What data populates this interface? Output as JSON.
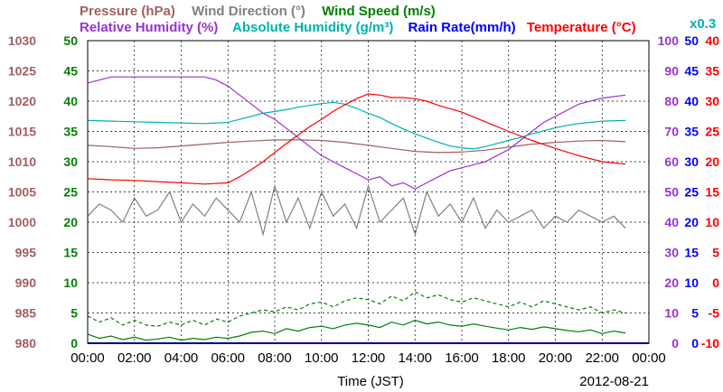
{
  "chart_data": {
    "type": "line",
    "date": "2012-08-21",
    "xlabel": "Time (JST)",
    "x_ticks": [
      "00:00",
      "02:00",
      "04:00",
      "06:00",
      "08:00",
      "10:00",
      "12:00",
      "14:00",
      "16:00",
      "18:00",
      "20:00",
      "22:00",
      "00:00"
    ],
    "xlim_hours": [
      0,
      24
    ],
    "grid": true,
    "legend": {
      "row1": [
        {
          "key": "pressure",
          "text": "Pressure (hPa)",
          "color": "#a06060"
        },
        {
          "key": "wind_direction",
          "text": "Wind Direction (°)",
          "color": "#808080"
        },
        {
          "key": "wind_speed",
          "text": "Wind Speed (m/s)",
          "color": "#008000"
        }
      ],
      "row2": [
        {
          "key": "relative_humidity",
          "text": "Relative Humidity (%)",
          "color": "#9933cc"
        },
        {
          "key": "absolute_humidity",
          "text": "Absolute Humidity (g/m³)",
          "color": "#00b0b0"
        },
        {
          "key": "rain_rate",
          "text": "Rain Rate(mm/h)",
          "color": "#0000ff"
        },
        {
          "key": "temperature",
          "text": "Temperature (°C)",
          "color": "#ff0000"
        }
      ],
      "wind_direction_scale_note": "x0.3"
    },
    "axes": {
      "pressure": {
        "color": "#a06060",
        "ylim": [
          980,
          1030
        ],
        "ticks": [
          "1030",
          "1025",
          "1020",
          "1015",
          "1010",
          "1005",
          "1000",
          "995",
          "990",
          "985",
          "980"
        ]
      },
      "wind_speed": {
        "color": "#008000",
        "ylim": [
          0,
          50
        ],
        "ticks": [
          "50",
          "45",
          "40",
          "35",
          "30",
          "25",
          "20",
          "15",
          "10",
          "5",
          "0"
        ]
      },
      "relative_humidity": {
        "color": "#9933cc",
        "ylim": [
          0,
          100
        ],
        "ticks": [
          "100",
          "90",
          "80",
          "70",
          "60",
          "50",
          "40",
          "30",
          "20",
          "10",
          "0"
        ]
      },
      "rain_rate": {
        "color": "#0000ff",
        "ylim": [
          0,
          50
        ],
        "ticks": [
          "50",
          "45",
          "40",
          "35",
          "30",
          "25",
          "20",
          "15",
          "10",
          "5",
          "0"
        ]
      },
      "temperature": {
        "color": "#ff0000",
        "ylim": [
          -10,
          40
        ],
        "ticks": [
          "40",
          "35",
          "30",
          "25",
          "20",
          "15",
          "10",
          "5",
          "0",
          "-5",
          "-10"
        ]
      }
    },
    "series": [
      {
        "key": "pressure",
        "name": "Pressure (hPa)",
        "color": "#a06060",
        "axis": "pressure",
        "x": [
          0,
          1,
          2,
          3,
          4,
          5,
          6,
          7,
          8,
          9,
          10,
          11,
          12,
          13,
          14,
          15,
          16,
          17,
          18,
          19,
          20,
          21,
          22,
          23
        ],
        "y": [
          1012.7,
          1012.5,
          1012.2,
          1012.3,
          1012.6,
          1012.9,
          1013.2,
          1013.4,
          1013.6,
          1013.6,
          1013.5,
          1013.2,
          1012.7,
          1012.2,
          1011.7,
          1011.5,
          1011.6,
          1011.9,
          1012.4,
          1012.9,
          1013.2,
          1013.4,
          1013.5,
          1013.3
        ]
      },
      {
        "key": "relative_humidity",
        "name": "Relative Humidity (%)",
        "color": "#9933cc",
        "axis": "relative_humidity",
        "x": [
          0,
          1,
          2,
          3,
          4,
          5,
          5.5,
          6,
          6.5,
          7,
          7.5,
          8,
          8.5,
          9,
          9.5,
          10,
          10.5,
          11,
          11.5,
          12,
          12.5,
          13,
          13.5,
          14,
          14.5,
          15,
          15.5,
          16,
          16.5,
          17,
          17.5,
          18,
          18.5,
          19,
          19.5,
          20,
          20.5,
          21,
          21.5,
          22,
          23
        ],
        "y": [
          86,
          88,
          88,
          88,
          88,
          88,
          87,
          85,
          82,
          79,
          76,
          74,
          71,
          68,
          65,
          62,
          60,
          58,
          56,
          54,
          55,
          52,
          53,
          51,
          53,
          55,
          57,
          58,
          59,
          60,
          62,
          64,
          67,
          70,
          73,
          75,
          77,
          79,
          80,
          81,
          82
        ]
      },
      {
        "key": "absolute_humidity",
        "name": "Absolute Humidity (g/m³)",
        "color": "#00b0b0",
        "axis": "wind_speed",
        "x": [
          0,
          1,
          2,
          3,
          4,
          5,
          6,
          6.5,
          7,
          7.5,
          8,
          8.5,
          9,
          9.5,
          10,
          10.5,
          11,
          11.5,
          12,
          12.5,
          13,
          13.5,
          14,
          14.5,
          15,
          15.5,
          16,
          16.5,
          17,
          17.5,
          18,
          18.5,
          19,
          19.5,
          20,
          20.5,
          21,
          21.5,
          22,
          23
        ],
        "y": [
          36.8,
          36.7,
          36.6,
          36.5,
          36.4,
          36.3,
          36.5,
          37,
          37.5,
          38,
          38.3,
          38.6,
          39,
          39.3,
          39.6,
          39.8,
          39.5,
          38.8,
          38,
          37.3,
          36.3,
          35.4,
          34.6,
          33.9,
          33.2,
          32.6,
          32.3,
          32.1,
          32.5,
          33,
          33.5,
          34,
          34.6,
          35.1,
          35.6,
          36,
          36.3,
          36.5,
          36.7,
          36.8
        ]
      },
      {
        "key": "temperature",
        "name": "Temperature (°C)",
        "color": "#ff0000",
        "axis": "temperature",
        "x": [
          0,
          1,
          2,
          3,
          4,
          5,
          6,
          6.5,
          7,
          7.5,
          8,
          8.5,
          9,
          9.5,
          10,
          10.5,
          11,
          11.5,
          12,
          12.5,
          13,
          13.5,
          14,
          14.5,
          15,
          16,
          17,
          18,
          19,
          20,
          21,
          22,
          23
        ],
        "y": [
          17.2,
          17.0,
          16.9,
          16.7,
          16.5,
          16.3,
          16.5,
          17.5,
          18.7,
          20,
          21.5,
          23,
          24.4,
          25.8,
          27,
          28.3,
          29.4,
          30.4,
          31.2,
          31,
          30.6,
          30.6,
          30.4,
          30,
          29.3,
          28.2,
          26.6,
          25,
          23.5,
          22.2,
          21,
          20,
          19.6
        ]
      },
      {
        "key": "wind_direction",
        "name": "Wind Direction (°)",
        "color": "#808080",
        "axis": "wind_speed",
        "note": "values x0.3",
        "x": [
          0,
          0.5,
          1,
          1.5,
          2,
          2.5,
          3,
          3.5,
          4,
          4.5,
          5,
          5.5,
          6,
          6.5,
          7,
          7.5,
          8,
          8.5,
          9,
          9.5,
          10,
          10.5,
          11,
          11.5,
          12,
          12.5,
          13,
          13.5,
          14,
          14.5,
          15,
          15.5,
          16,
          16.5,
          17,
          17.5,
          18,
          18.5,
          19,
          19.5,
          20,
          20.5,
          21,
          21.5,
          22,
          22.5,
          23
        ],
        "y": [
          21,
          23,
          22,
          20,
          24,
          21,
          22,
          25,
          20,
          23,
          21,
          24,
          22,
          20,
          25,
          18,
          26,
          20,
          24,
          19,
          25,
          21,
          23,
          19,
          26,
          20,
          22,
          24,
          18,
          25,
          21,
          23,
          20,
          24,
          19,
          22,
          20,
          21,
          22,
          19,
          21,
          20,
          22,
          21,
          20,
          21,
          19
        ]
      },
      {
        "key": "wind_speed_max",
        "name": "Wind Speed (m/s)",
        "color": "#008000",
        "axis": "wind_speed",
        "style": "dashed",
        "x": [
          0,
          0.5,
          1,
          1.5,
          2,
          2.5,
          3,
          3.5,
          4,
          4.5,
          5,
          5.5,
          6,
          6.5,
          7,
          7.5,
          8,
          8.5,
          9,
          9.5,
          10,
          10.5,
          11,
          11.5,
          12,
          12.5,
          13,
          13.5,
          14,
          14.5,
          15,
          15.5,
          16,
          16.5,
          17,
          17.5,
          18,
          18.5,
          19,
          19.5,
          20,
          20.5,
          21,
          21.5,
          22,
          22.5,
          23
        ],
        "y": [
          4.5,
          3.5,
          4.2,
          3,
          3.8,
          3,
          2.8,
          3.5,
          3,
          3.8,
          3,
          4,
          3.5,
          4.5,
          5,
          5.5,
          5.2,
          6,
          5.5,
          6.5,
          6.8,
          6,
          7,
          7.5,
          7.2,
          6.5,
          7.8,
          7,
          8.5,
          7.5,
          8,
          7.2,
          6.8,
          7.5,
          7,
          6.5,
          6,
          6.8,
          6,
          7,
          6.5,
          6,
          5.5,
          6,
          5,
          5.5,
          5
        ]
      },
      {
        "key": "wind_speed_avg",
        "name": "Wind Speed (m/s)",
        "color": "#008000",
        "axis": "wind_speed",
        "style": "solid",
        "x": [
          0,
          0.5,
          1,
          1.5,
          2,
          2.5,
          3,
          3.5,
          4,
          4.5,
          5,
          5.5,
          6,
          6.5,
          7,
          7.5,
          8,
          8.5,
          9,
          9.5,
          10,
          10.5,
          11,
          11.5,
          12,
          12.5,
          13,
          13.5,
          14,
          14.5,
          15,
          15.5,
          16,
          16.5,
          17,
          17.5,
          18,
          18.5,
          19,
          19.5,
          20,
          20.5,
          21,
          21.5,
          22,
          22.5,
          23
        ],
        "y": [
          1.5,
          0.8,
          1.2,
          0.6,
          1,
          0.5,
          0.7,
          1,
          0.5,
          0.8,
          0.6,
          1,
          0.8,
          1.2,
          1.8,
          2,
          1.6,
          2.4,
          2,
          2.6,
          2.8,
          2.4,
          3,
          3.3,
          3,
          2.6,
          3.5,
          3,
          3.8,
          3.2,
          3.5,
          3,
          2.8,
          3.2,
          2.8,
          2.5,
          2.2,
          2.6,
          2.3,
          2.7,
          2.4,
          2.1,
          1.9,
          2.2,
          1.6,
          2,
          1.7
        ]
      },
      {
        "key": "rain_rate",
        "name": "Rain Rate(mm/h)",
        "color": "#0000ff",
        "axis": "rain_rate",
        "x": [
          0,
          24
        ],
        "y": [
          0,
          0
        ]
      }
    ]
  }
}
